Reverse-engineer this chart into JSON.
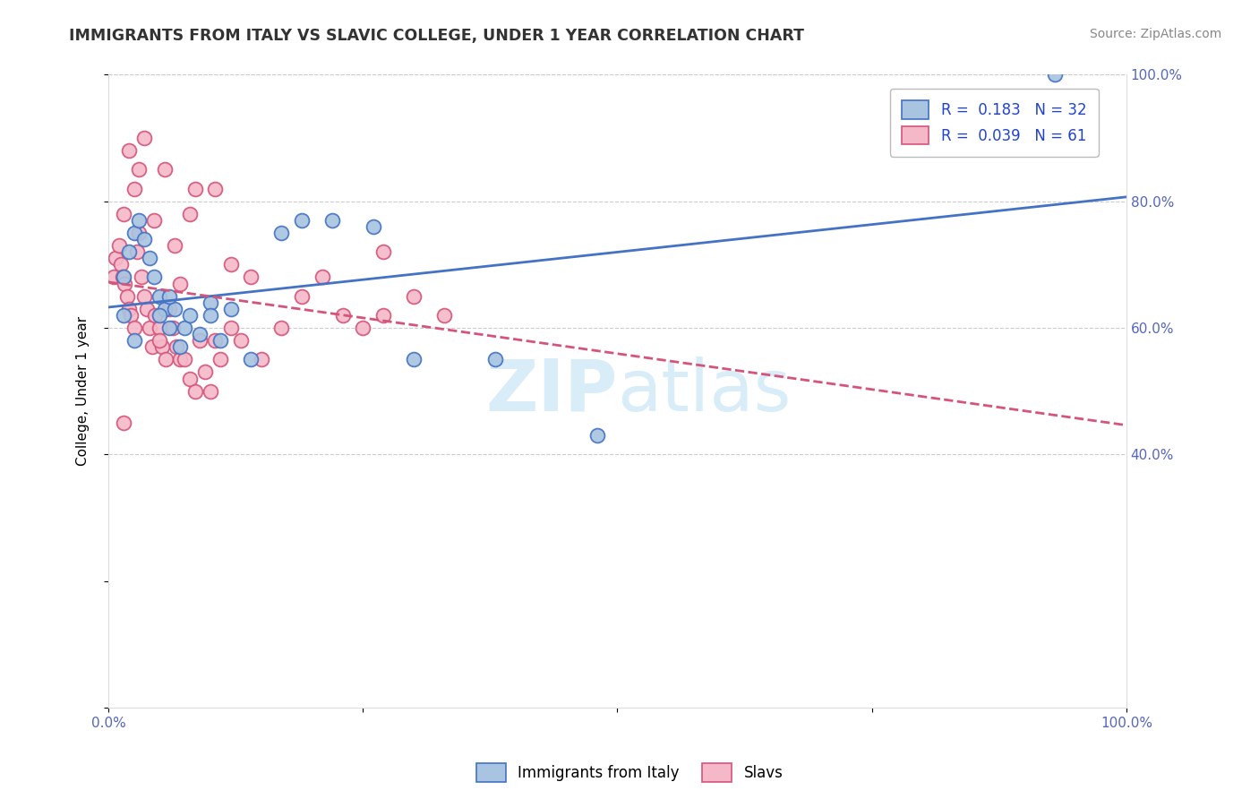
{
  "title": "IMMIGRANTS FROM ITALY VS SLAVIC COLLEGE, UNDER 1 YEAR CORRELATION CHART",
  "source_text": "Source: ZipAtlas.com",
  "ylabel": "College, Under 1 year",
  "xlabel": "",
  "legend_bottom": [
    "Immigrants from Italy",
    "Slavs"
  ],
  "italy_color": "#a8c4e0",
  "slavs_color": "#f4b8c8",
  "italy_line_color": "#4472c4",
  "slavs_line_color": "#d4547a",
  "watermark_color": "#d8edf8",
  "xlim": [
    0.0,
    1.0
  ],
  "ylim": [
    0.0,
    1.0
  ],
  "right_ytick_positions": [
    0.4,
    0.6,
    0.8,
    1.0
  ],
  "right_yticklabels": [
    "40.0%",
    "60.0%",
    "80.0%",
    "100.0%"
  ],
  "italy_x": [
    0.015,
    0.02,
    0.025,
    0.03,
    0.035,
    0.04,
    0.045,
    0.05,
    0.055,
    0.06,
    0.065,
    0.07,
    0.075,
    0.08,
    0.09,
    0.1,
    0.11,
    0.12,
    0.14,
    0.17,
    0.19,
    0.22,
    0.26,
    0.3,
    0.38,
    0.48,
    0.93,
    0.015,
    0.025,
    0.05,
    0.06,
    0.1
  ],
  "italy_y": [
    0.68,
    0.72,
    0.75,
    0.77,
    0.74,
    0.71,
    0.68,
    0.65,
    0.63,
    0.6,
    0.63,
    0.57,
    0.6,
    0.62,
    0.59,
    0.64,
    0.58,
    0.63,
    0.55,
    0.75,
    0.77,
    0.77,
    0.76,
    0.55,
    0.55,
    0.43,
    1.0,
    0.62,
    0.58,
    0.62,
    0.65,
    0.62
  ],
  "slavs_x": [
    0.005,
    0.007,
    0.01,
    0.012,
    0.014,
    0.016,
    0.018,
    0.02,
    0.022,
    0.025,
    0.028,
    0.03,
    0.032,
    0.035,
    0.038,
    0.04,
    0.043,
    0.046,
    0.05,
    0.053,
    0.056,
    0.06,
    0.063,
    0.067,
    0.07,
    0.075,
    0.08,
    0.085,
    0.09,
    0.095,
    0.1,
    0.105,
    0.11,
    0.12,
    0.13,
    0.14,
    0.15,
    0.17,
    0.19,
    0.21,
    0.23,
    0.25,
    0.27,
    0.3,
    0.33,
    0.27,
    0.12,
    0.07,
    0.05,
    0.03,
    0.02,
    0.015,
    0.025,
    0.045,
    0.065,
    0.085,
    0.035,
    0.055,
    0.08,
    0.105,
    0.015
  ],
  "slavs_y": [
    0.68,
    0.71,
    0.73,
    0.7,
    0.68,
    0.67,
    0.65,
    0.63,
    0.62,
    0.6,
    0.72,
    0.75,
    0.68,
    0.65,
    0.63,
    0.6,
    0.57,
    0.62,
    0.6,
    0.57,
    0.55,
    0.63,
    0.6,
    0.57,
    0.55,
    0.55,
    0.52,
    0.5,
    0.58,
    0.53,
    0.5,
    0.58,
    0.55,
    0.6,
    0.58,
    0.68,
    0.55,
    0.6,
    0.65,
    0.68,
    0.62,
    0.6,
    0.72,
    0.65,
    0.62,
    0.62,
    0.7,
    0.67,
    0.58,
    0.85,
    0.88,
    0.78,
    0.82,
    0.77,
    0.73,
    0.82,
    0.9,
    0.85,
    0.78,
    0.82,
    0.45
  ],
  "title_fontsize": 12.5,
  "axis_label_fontsize": 11,
  "tick_fontsize": 11,
  "source_fontsize": 10,
  "legend_fontsize": 12
}
